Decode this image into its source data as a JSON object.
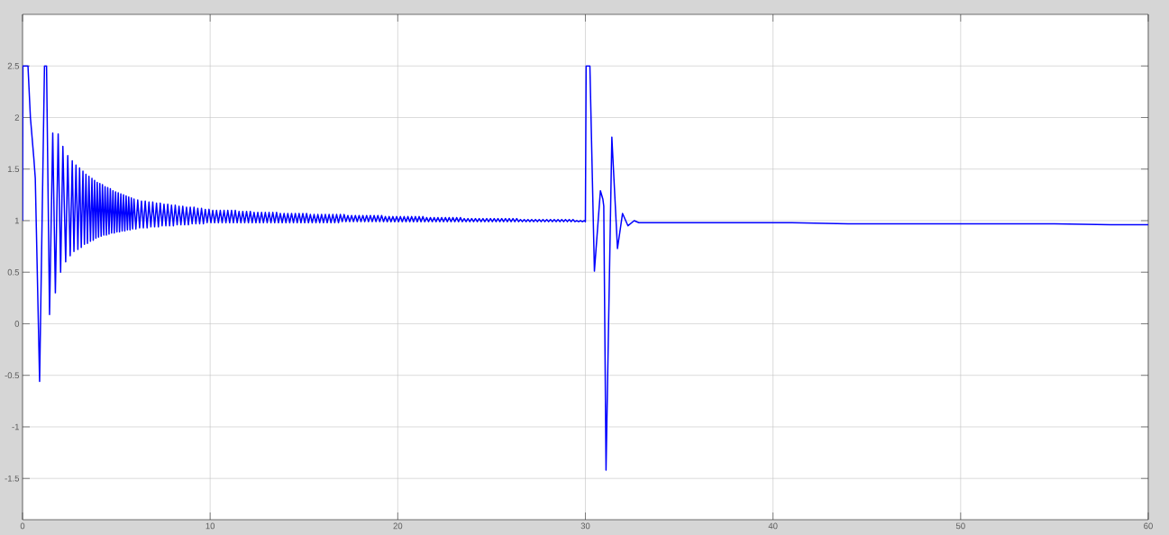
{
  "chart_data": {
    "type": "line",
    "x": [
      0,
      0.02,
      0.29,
      0.42,
      0.6,
      0.68,
      0.91,
      1.17,
      1.28,
      1.44,
      1.61,
      1.75,
      1.9,
      2.03,
      2.15,
      2.3,
      2.41,
      2.54,
      2.65,
      2.74,
      2.85,
      2.95,
      3.04,
      3.13,
      3.22,
      3.3,
      3.38,
      3.46,
      3.54,
      3.62,
      3.7,
      3.77,
      3.84,
      3.91,
      3.98,
      4.05,
      4.12,
      4.19,
      4.26,
      4.33,
      4.4,
      4.47,
      4.54,
      4.61,
      4.68,
      4.75,
      4.82,
      4.89,
      4.96,
      5.03,
      5.1,
      5.17,
      5.24,
      5.31,
      5.38,
      5.45,
      5.52,
      5.59,
      5.66,
      5.73,
      5.8,
      5.87,
      5.94,
      6.04,
      6.14,
      6.24,
      6.34,
      6.44,
      6.54,
      6.64,
      6.74,
      6.84,
      6.94,
      7.04,
      7.14,
      7.24,
      7.34,
      7.44,
      7.54,
      7.64,
      7.74,
      7.84,
      7.94,
      8.04,
      8.14,
      8.24,
      8.34,
      8.44,
      8.54,
      8.64,
      8.74,
      8.84,
      8.94,
      9.04,
      9.14,
      9.24,
      9.34,
      9.44,
      9.54,
      9.64,
      9.74,
      9.84,
      9.94,
      10.04,
      10.14,
      10.24,
      10.34,
      10.44,
      10.54,
      10.64,
      10.74,
      10.84,
      10.94,
      11.04,
      11.14,
      11.24,
      11.34,
      11.44,
      11.54,
      11.64,
      11.74,
      11.84,
      11.94,
      12.04,
      12.14,
      12.24,
      12.34,
      12.44,
      12.54,
      12.64,
      12.74,
      12.84,
      12.94,
      13.04,
      13.14,
      13.24,
      13.34,
      13.44,
      13.54,
      13.64,
      13.74,
      13.84,
      13.94,
      14.04,
      14.14,
      14.24,
      14.34,
      14.44,
      14.54,
      14.64,
      14.74,
      14.84,
      14.94,
      15.04,
      15.14,
      15.24,
      15.34,
      15.44,
      15.54,
      15.64,
      15.74,
      15.84,
      15.94,
      16.04,
      16.14,
      16.24,
      16.34,
      16.44,
      16.54,
      16.64,
      16.74,
      16.84,
      16.94,
      17.04,
      17.14,
      17.24,
      17.34,
      17.44,
      17.54,
      17.64,
      17.74,
      17.84,
      17.94,
      18.04,
      18.14,
      18.24,
      18.34,
      18.44,
      18.54,
      18.64,
      18.74,
      18.84,
      18.94,
      19.04,
      19.14,
      19.24,
      19.34,
      19.44,
      19.54,
      19.64,
      19.74,
      19.84,
      19.94,
      20.04,
      20.14,
      20.24,
      20.34,
      20.44,
      20.54,
      20.64,
      20.74,
      20.84,
      20.94,
      21.04,
      21.14,
      21.24,
      21.34,
      21.44,
      21.54,
      21.64,
      21.74,
      21.84,
      21.94,
      22.04,
      22.14,
      22.24,
      22.34,
      22.44,
      22.54,
      22.64,
      22.74,
      22.84,
      22.94,
      23.04,
      23.14,
      23.24,
      23.34,
      23.44,
      23.54,
      23.64,
      23.74,
      23.84,
      23.94,
      24.04,
      24.14,
      24.24,
      24.34,
      24.44,
      24.54,
      24.64,
      24.74,
      24.84,
      24.94,
      25.04,
      25.14,
      25.24,
      25.34,
      25.44,
      25.54,
      25.64,
      25.74,
      25.84,
      25.94,
      26.04,
      26.14,
      26.24,
      26.34,
      26.44,
      26.54,
      26.64,
      26.74,
      26.84,
      26.94,
      27.04,
      27.14,
      27.24,
      27.34,
      27.44,
      27.54,
      27.64,
      27.74,
      27.84,
      27.94,
      28.04,
      28.14,
      28.24,
      28.34,
      28.44,
      28.54,
      28.64,
      28.74,
      28.84,
      28.94,
      29.04,
      29.14,
      29.24,
      29.34,
      29.44,
      29.54,
      29.64,
      29.74,
      29.84,
      29.94,
      30,
      30.04,
      30.24,
      30.48,
      30.8,
      30.93,
      30.98,
      31.1,
      31.41,
      31.71,
      31.98,
      32.27,
      32.6,
      32.85,
      41,
      44,
      55,
      58,
      60
    ],
    "series": [
      {
        "color": "#0000ff",
        "values": [
          1,
          2.5,
          2.5,
          2,
          1.61,
          1.41,
          -0.56,
          2.5,
          2.5,
          0.09,
          1.85,
          0.3,
          1.84,
          0.5,
          1.72,
          0.6,
          1.63,
          0.66,
          1.58,
          0.7,
          1.54,
          0.72,
          1.51,
          0.74,
          1.48,
          0.77,
          1.45,
          0.78,
          1.43,
          0.8,
          1.41,
          0.81,
          1.39,
          0.83,
          1.37,
          0.84,
          1.36,
          0.85,
          1.35,
          0.86,
          1.33,
          0.86,
          1.32,
          0.87,
          1.31,
          0.88,
          1.29,
          0.88,
          1.28,
          0.89,
          1.27,
          0.89,
          1.26,
          0.9,
          1.25,
          0.9,
          1.24,
          0.91,
          1.23,
          0.91,
          1.22,
          0.92,
          1.21,
          0.92,
          1.2,
          0.93,
          1.19,
          0.93,
          1.19,
          0.93,
          1.18,
          0.94,
          1.18,
          0.94,
          1.17,
          0.94,
          1.17,
          0.95,
          1.16,
          0.95,
          1.16,
          0.95,
          1.15,
          0.95,
          1.15,
          0.96,
          1.14,
          0.96,
          1.14,
          0.96,
          1.13,
          0.96,
          1.13,
          0.97,
          1.13,
          0.97,
          1.12,
          0.97,
          1.12,
          0.97,
          1.11,
          0.98,
          1.11,
          0.98,
          1.1,
          0.98,
          1.1,
          0.98,
          1.1,
          0.98,
          1.1,
          0.98,
          1.1,
          0.98,
          1.1,
          0.98,
          1.1,
          0.98,
          1.09,
          0.98,
          1.09,
          0.98,
          1.09,
          0.98,
          1.09,
          0.98,
          1.08,
          0.98,
          1.08,
          0.98,
          1.08,
          0.98,
          1.08,
          0.98,
          1.08,
          0.98,
          1.08,
          0.98,
          1.08,
          0.98,
          1.07,
          0.98,
          1.07,
          0.98,
          1.07,
          0.98,
          1.07,
          0.98,
          1.07,
          0.98,
          1.07,
          0.98,
          1.07,
          0.98,
          1.07,
          0.98,
          1.06,
          0.98,
          1.06,
          0.98,
          1.06,
          0.98,
          1.06,
          0.98,
          1.06,
          0.98,
          1.06,
          0.98,
          1.06,
          0.98,
          1.06,
          0.98,
          1.06,
          0.99,
          1.06,
          0.99,
          1.05,
          0.99,
          1.05,
          0.99,
          1.05,
          0.99,
          1.05,
          0.99,
          1.05,
          0.99,
          1.05,
          0.99,
          1.05,
          0.99,
          1.05,
          0.99,
          1.05,
          0.99,
          1.05,
          0.99,
          1.04,
          0.99,
          1.04,
          0.99,
          1.04,
          0.99,
          1.04,
          0.99,
          1.04,
          0.99,
          1.04,
          0.99,
          1.04,
          0.99,
          1.04,
          0.99,
          1.04,
          0.99,
          1.04,
          0.99,
          1.04,
          0.99,
          1.03,
          0.99,
          1.03,
          0.99,
          1.03,
          0.99,
          1.03,
          0.99,
          1.03,
          0.99,
          1.03,
          0.99,
          1.03,
          0.99,
          1.03,
          0.99,
          1.03,
          0.99,
          1.03,
          0.99,
          1.02,
          0.99,
          1.02,
          0.99,
          1.02,
          0.99,
          1.02,
          0.99,
          1.02,
          0.99,
          1.02,
          0.99,
          1.02,
          0.99,
          1.02,
          0.99,
          1.02,
          0.99,
          1.02,
          0.99,
          1.02,
          0.99,
          1.02,
          0.99,
          1.02,
          0.99,
          1.02,
          0.99,
          1.02,
          0.99,
          1.01,
          0.99,
          1.01,
          0.99,
          1.01,
          0.99,
          1.01,
          0.99,
          1.01,
          0.99,
          1.01,
          0.99,
          1.01,
          0.99,
          1.01,
          0.99,
          1.01,
          0.99,
          1.01,
          0.99,
          1.01,
          0.99,
          1.01,
          0.99,
          1.01,
          0.99,
          1.01,
          0.99,
          1.01,
          0.99,
          1,
          0.99,
          1,
          0.99,
          1,
          0.99,
          2.5,
          2.5,
          0.51,
          1.29,
          1.21,
          1.14,
          -1.42,
          1.81,
          0.73,
          1.07,
          0.95,
          1,
          0.98,
          0.98,
          0.97,
          0.97,
          0.96,
          0.96
        ]
      }
    ],
    "xlim": [
      0,
      60
    ],
    "ylim": [
      -1.9,
      3
    ],
    "xticks": [
      0,
      10,
      20,
      30,
      40,
      50,
      60
    ],
    "yticks": [
      -1.5,
      -1,
      -0.5,
      0,
      0.5,
      1,
      1.5,
      2,
      2.5
    ],
    "grid": true,
    "line_style": "solid"
  }
}
